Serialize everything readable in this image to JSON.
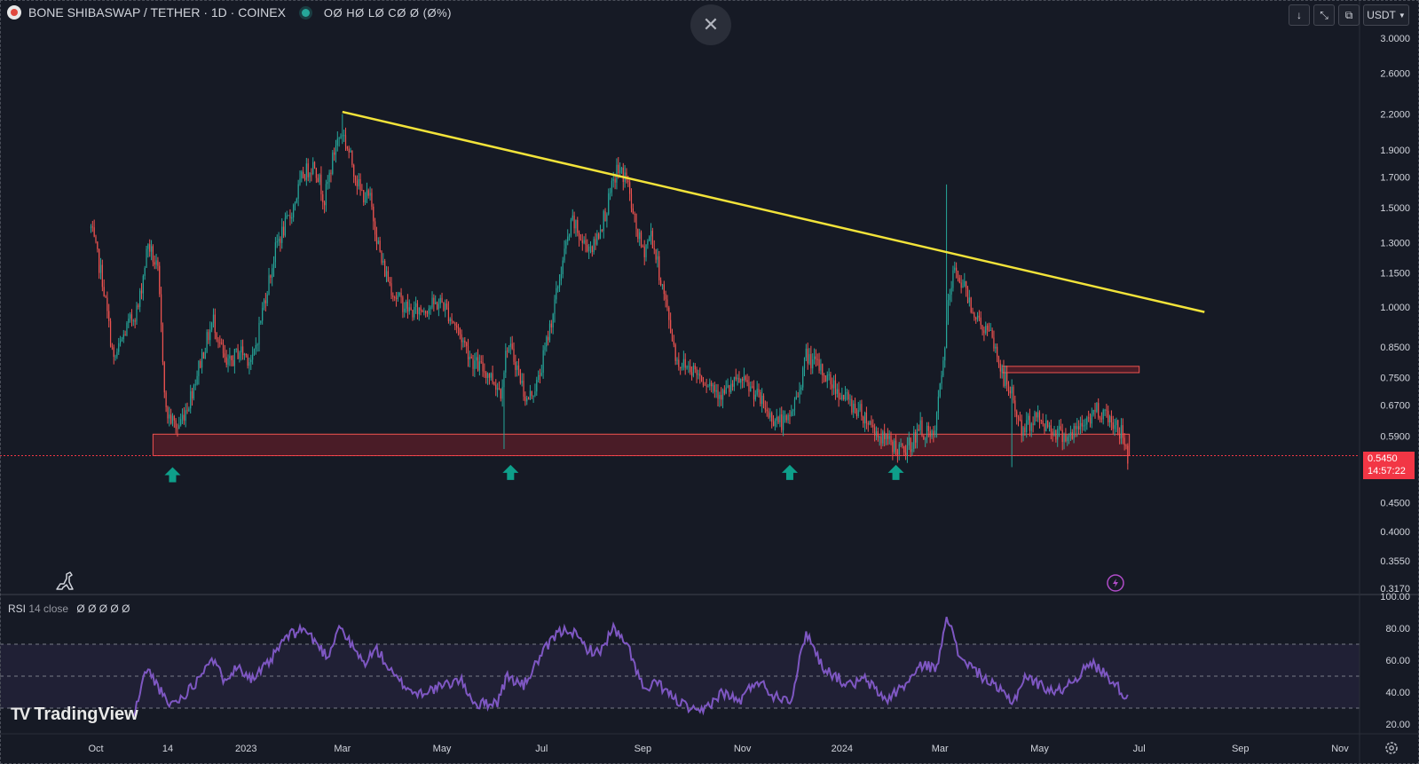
{
  "header": {
    "symbol_title": "BONE SHIBASWAP / TETHER · 1D · COINEX",
    "ohlc_text": "OØ HØ LØ CØ Ø (Ø%)",
    "close_icon": "close-icon"
  },
  "toolbar": {
    "arrow_down_icon": "arrow-down-icon",
    "collapse_icon": "collapse-icon",
    "screen_icon": "screen-icon",
    "currency": "USDT"
  },
  "price_tag": {
    "price": "0.5450",
    "countdown": "14:57:22"
  },
  "rsi_panel": {
    "label": "RSI",
    "params": "14 close",
    "values": "Ø Ø Ø Ø Ø"
  },
  "watermark": "TradingView",
  "colors": {
    "bull": "#26a69a",
    "bear": "#ef5350",
    "trendline": "#f2e33a",
    "zone_fill": "#8a1f2b",
    "zone_border": "#ef5350",
    "rsi_line": "#7e57c2",
    "arrow": "#0e9f8a"
  },
  "chart_data": [
    {
      "type": "candlestick",
      "title": "BONE SHIBASWAP / TETHER · 1D · COINEX",
      "y_scale": "log",
      "ylim": [
        0.317,
        3.0
      ],
      "y_ticks": [
        "3.0000",
        "2.6000",
        "2.2000",
        "1.9000",
        "1.7000",
        "1.5000",
        "1.3000",
        "1.1500",
        "1.0000",
        "0.8500",
        "0.7500",
        "0.6700",
        "0.5900",
        "0.4500",
        "0.4000",
        "0.3550",
        "0.3170"
      ],
      "x_ticks": [
        "Oct",
        "14",
        "2023",
        "Mar",
        "May",
        "Jul",
        "Sep",
        "Nov",
        "2024",
        "Mar",
        "May",
        "Jul",
        "Sep",
        "Nov"
      ],
      "x_tick_dates": [
        "2022-10-01",
        "2022-11-14",
        "2023-01-01",
        "2023-03-01",
        "2023-05-01",
        "2023-07-01",
        "2023-09-01",
        "2023-11-01",
        "2024-01-01",
        "2024-03-01",
        "2024-05-01",
        "2024-07-01",
        "2024-09-01",
        "2024-11-01"
      ],
      "close_path": [
        [
          "2022-09-28",
          1.38
        ],
        [
          "2022-10-05",
          1.12
        ],
        [
          "2022-10-12",
          0.8
        ],
        [
          "2022-10-20",
          0.92
        ],
        [
          "2022-10-27",
          1.0
        ],
        [
          "2022-11-02",
          1.3
        ],
        [
          "2022-11-08",
          1.15
        ],
        [
          "2022-11-13",
          0.65
        ],
        [
          "2022-11-20",
          0.61
        ],
        [
          "2022-11-27",
          0.68
        ],
        [
          "2022-12-05",
          0.82
        ],
        [
          "2022-12-12",
          0.95
        ],
        [
          "2022-12-20",
          0.78
        ],
        [
          "2022-12-28",
          0.84
        ],
        [
          "2023-01-05",
          0.8
        ],
        [
          "2023-01-12",
          1.02
        ],
        [
          "2023-01-20",
          1.3
        ],
        [
          "2023-01-28",
          1.45
        ],
        [
          "2023-02-05",
          1.72
        ],
        [
          "2023-02-12",
          1.8
        ],
        [
          "2023-02-18",
          1.55
        ],
        [
          "2023-02-25",
          1.95
        ],
        [
          "2023-03-01",
          2.05
        ],
        [
          "2023-03-07",
          1.8
        ],
        [
          "2023-03-12",
          1.6
        ],
        [
          "2023-03-18",
          1.55
        ],
        [
          "2023-03-25",
          1.2
        ],
        [
          "2023-04-02",
          1.05
        ],
        [
          "2023-04-12",
          0.98
        ],
        [
          "2023-04-22",
          1.0
        ],
        [
          "2023-05-01",
          1.02
        ],
        [
          "2023-05-10",
          0.92
        ],
        [
          "2023-05-20",
          0.8
        ],
        [
          "2023-05-30",
          0.76
        ],
        [
          "2023-06-06",
          0.71
        ],
        [
          "2023-06-10",
          0.86
        ],
        [
          "2023-06-15",
          0.8
        ],
        [
          "2023-06-22",
          0.68
        ],
        [
          "2023-06-29",
          0.74
        ],
        [
          "2023-07-08",
          0.98
        ],
        [
          "2023-07-15",
          1.25
        ],
        [
          "2023-07-20",
          1.42
        ],
        [
          "2023-07-26",
          1.3
        ],
        [
          "2023-08-02",
          1.28
        ],
        [
          "2023-08-10",
          1.5
        ],
        [
          "2023-08-16",
          1.75
        ],
        [
          "2023-08-22",
          1.7
        ],
        [
          "2023-08-26",
          1.45
        ],
        [
          "2023-09-01",
          1.25
        ],
        [
          "2023-09-06",
          1.35
        ],
        [
          "2023-09-14",
          1.05
        ],
        [
          "2023-09-22",
          0.8
        ],
        [
          "2023-10-01",
          0.78
        ],
        [
          "2023-10-10",
          0.74
        ],
        [
          "2023-10-20",
          0.7
        ],
        [
          "2023-10-30",
          0.74
        ],
        [
          "2023-11-08",
          0.71
        ],
        [
          "2023-11-18",
          0.64
        ],
        [
          "2023-11-28",
          0.62
        ],
        [
          "2023-12-05",
          0.7
        ],
        [
          "2023-12-10",
          0.82
        ],
        [
          "2023-12-18",
          0.78
        ],
        [
          "2023-12-28",
          0.72
        ],
        [
          "2024-01-05",
          0.68
        ],
        [
          "2024-01-15",
          0.64
        ],
        [
          "2024-01-24",
          0.59
        ],
        [
          "2024-02-01",
          0.57
        ],
        [
          "2024-02-08",
          0.55
        ],
        [
          "2024-02-18",
          0.61
        ],
        [
          "2024-02-26",
          0.58
        ],
        [
          "2024-03-02",
          0.75
        ],
        [
          "2024-03-06",
          1.0
        ],
        [
          "2024-03-10",
          1.18
        ],
        [
          "2024-03-16",
          1.08
        ],
        [
          "2024-03-24",
          0.95
        ],
        [
          "2024-04-02",
          0.88
        ],
        [
          "2024-04-08",
          0.76
        ],
        [
          "2024-04-14",
          0.7
        ],
        [
          "2024-04-20",
          0.6
        ],
        [
          "2024-04-28",
          0.64
        ],
        [
          "2024-05-05",
          0.62
        ],
        [
          "2024-05-12",
          0.6
        ],
        [
          "2024-05-20",
          0.59
        ],
        [
          "2024-05-28",
          0.62
        ],
        [
          "2024-06-05",
          0.66
        ],
        [
          "2024-06-12",
          0.64
        ],
        [
          "2024-06-20",
          0.6
        ],
        [
          "2024-06-24",
          0.545
        ]
      ],
      "wick_extremes": [
        [
          "2023-03-01",
          2.2
        ],
        [
          "2023-06-08",
          0.56
        ],
        [
          "2024-03-05",
          1.65
        ],
        [
          "2024-04-14",
          0.52
        ]
      ],
      "last_price": 0.545,
      "trendline": {
        "from": [
          "2023-03-01",
          2.22
        ],
        "to": [
          "2024-08-10",
          0.98
        ]
      },
      "support_zone": {
        "from": "2022-11-05",
        "to": "2024-06-25",
        "low": 0.545,
        "high": 0.595
      },
      "resistance_zone": {
        "from": "2024-04-08",
        "to": "2024-07-01",
        "low": 0.765,
        "high": 0.785
      },
      "bounce_arrows": [
        [
          "2022-11-17",
          0.52
        ],
        [
          "2023-06-12",
          0.525
        ],
        [
          "2023-11-30",
          0.525
        ],
        [
          "2024-02-03",
          0.525
        ]
      ]
    },
    {
      "type": "line",
      "title": "RSI 14 close",
      "ylim": [
        15,
        100
      ],
      "y_ticks": [
        "100.00",
        "80.00",
        "60.00",
        "40.00",
        "20.00"
      ],
      "bands": {
        "upper": 70,
        "middle": 50,
        "lower": 30
      },
      "series": [
        {
          "points": [
            [
              "2022-10-24",
              24
            ],
            [
              "2022-11-01",
              55
            ],
            [
              "2022-11-08",
              44
            ],
            [
              "2022-11-14",
              32
            ],
            [
              "2022-11-22",
              36
            ],
            [
              "2022-12-01",
              46
            ],
            [
              "2022-12-10",
              62
            ],
            [
              "2022-12-18",
              49
            ],
            [
              "2022-12-28",
              56
            ],
            [
              "2023-01-05",
              48
            ],
            [
              "2023-01-15",
              58
            ],
            [
              "2023-01-25",
              74
            ],
            [
              "2023-02-05",
              80
            ],
            [
              "2023-02-12",
              72
            ],
            [
              "2023-02-20",
              62
            ],
            [
              "2023-02-27",
              82
            ],
            [
              "2023-03-06",
              70
            ],
            [
              "2023-03-14",
              58
            ],
            [
              "2023-03-22",
              67
            ],
            [
              "2023-04-02",
              49
            ],
            [
              "2023-04-15",
              39
            ],
            [
              "2023-04-30",
              43
            ],
            [
              "2023-05-12",
              48
            ],
            [
              "2023-05-22",
              32
            ],
            [
              "2023-06-04",
              34
            ],
            [
              "2023-06-10",
              50
            ],
            [
              "2023-06-20",
              44
            ],
            [
              "2023-06-30",
              62
            ],
            [
              "2023-07-10",
              76
            ],
            [
              "2023-07-18",
              80
            ],
            [
              "2023-07-28",
              68
            ],
            [
              "2023-08-05",
              64
            ],
            [
              "2023-08-14",
              80
            ],
            [
              "2023-08-24",
              66
            ],
            [
              "2023-09-02",
              40
            ],
            [
              "2023-09-10",
              46
            ],
            [
              "2023-09-20",
              36
            ],
            [
              "2023-10-05",
              26
            ],
            [
              "2023-10-20",
              40
            ],
            [
              "2023-10-30",
              34
            ],
            [
              "2023-11-10",
              48
            ],
            [
              "2023-11-20",
              38
            ],
            [
              "2023-12-01",
              36
            ],
            [
              "2023-12-10",
              78
            ],
            [
              "2023-12-20",
              56
            ],
            [
              "2024-01-05",
              44
            ],
            [
              "2024-01-15",
              48
            ],
            [
              "2024-01-28",
              35
            ],
            [
              "2024-02-10",
              46
            ],
            [
              "2024-02-20",
              58
            ],
            [
              "2024-02-28",
              54
            ],
            [
              "2024-03-05",
              90
            ],
            [
              "2024-03-12",
              64
            ],
            [
              "2024-03-22",
              54
            ],
            [
              "2024-04-05",
              42
            ],
            [
              "2024-04-15",
              34
            ],
            [
              "2024-04-22",
              50
            ],
            [
              "2024-05-02",
              44
            ],
            [
              "2024-05-12",
              40
            ],
            [
              "2024-05-22",
              48
            ],
            [
              "2024-06-02",
              58
            ],
            [
              "2024-06-12",
              50
            ],
            [
              "2024-06-24",
              36
            ]
          ]
        }
      ]
    }
  ]
}
